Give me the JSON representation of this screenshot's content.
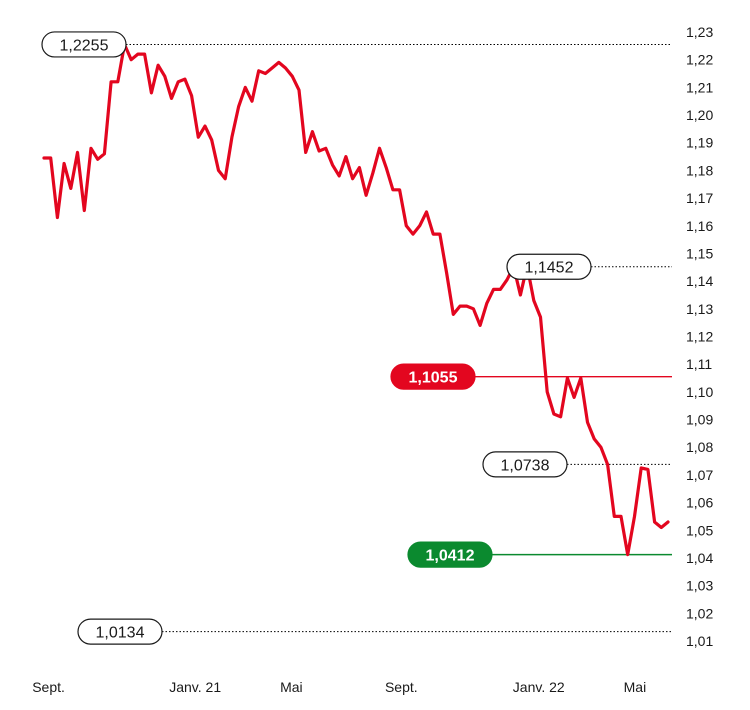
{
  "chart_data": {
    "type": "line",
    "title": "",
    "xlabel": "",
    "ylabel": "",
    "ylim": [
      1.01,
      1.23
    ],
    "y_ticks": [
      "1,23",
      "1,22",
      "1,21",
      "1,20",
      "1,19",
      "1,18",
      "1,17",
      "1,16",
      "1,15",
      "1,14",
      "1,13",
      "1,12",
      "1,11",
      "1,10",
      "1,09",
      "1,08",
      "1,07",
      "1,06",
      "1,05",
      "1,04",
      "1,03",
      "1,02",
      "1,01"
    ],
    "y_tick_values": [
      1.23,
      1.22,
      1.21,
      1.2,
      1.19,
      1.18,
      1.17,
      1.16,
      1.15,
      1.14,
      1.13,
      1.12,
      1.11,
      1.1,
      1.09,
      1.08,
      1.07,
      1.06,
      1.05,
      1.04,
      1.03,
      1.02,
      1.01
    ],
    "x_ticks": [
      {
        "label": "Sept.",
        "pos": 0.0
      },
      {
        "label": "Janv. 21",
        "pos": 16.0
      },
      {
        "label": "Mai",
        "pos": 26.5
      },
      {
        "label": "Sept.",
        "pos": 38.5
      },
      {
        "label": "Janv. 22",
        "pos": 53.5
      },
      {
        "label": "Mai",
        "pos": 64.0
      }
    ],
    "x_range": [
      -0.5,
      67.5
    ],
    "grid": false,
    "series": [
      {
        "values": [
          1.1845,
          1.1845,
          1.163,
          1.1825,
          1.1735,
          1.1865,
          1.1655,
          1.188,
          1.184,
          1.186,
          1.212,
          1.212,
          1.2255,
          1.22,
          1.222,
          1.222,
          1.208,
          1.218,
          1.214,
          1.206,
          1.212,
          1.213,
          1.207,
          1.192,
          1.196,
          1.191,
          1.18,
          1.177,
          1.192,
          1.203,
          1.21,
          1.205,
          1.216,
          1.215,
          1.217,
          1.219,
          1.217,
          1.214,
          1.209,
          1.1865,
          1.194,
          1.187,
          1.188,
          1.182,
          1.178,
          1.185,
          1.177,
          1.181,
          1.171,
          1.179,
          1.188,
          1.181,
          1.173,
          1.173,
          1.16,
          1.157,
          1.16,
          1.165,
          1.157,
          1.157,
          1.143,
          1.128,
          1.131,
          1.131,
          1.13,
          1.124,
          1.132,
          1.137,
          1.137,
          1.1405,
          1.1452,
          1.135,
          1.1455,
          1.133,
          1.127,
          1.1,
          1.092,
          1.091,
          1.105,
          1.098,
          1.105,
          1.089,
          1.083,
          1.08,
          1.0738,
          1.055,
          1.055,
          1.0412,
          1.055,
          1.0725,
          1.072,
          1.053,
          1.051,
          1.053
        ]
      }
    ],
    "reference_lines": [
      {
        "label": "1,2255",
        "value": 1.2255,
        "style": "dotted",
        "color": "#000000",
        "badge": "outline",
        "side": "left"
      },
      {
        "label": "1,1452",
        "value": 1.1452,
        "style": "dotted",
        "color": "#000000",
        "badge": "outline",
        "side": "middle"
      },
      {
        "label": "1,1055",
        "value": 1.1055,
        "style": "solid",
        "color": "#e3061f",
        "badge": "filled",
        "side": "middle"
      },
      {
        "label": "1,0738",
        "value": 1.0738,
        "style": "dotted",
        "color": "#000000",
        "badge": "outline",
        "side": "right"
      },
      {
        "label": "1,0412",
        "value": 1.0412,
        "style": "solid",
        "color": "#0b8a2f",
        "badge": "filled",
        "side": "middle"
      },
      {
        "label": "1,0134",
        "value": 1.0134,
        "style": "dotted",
        "color": "#000000",
        "badge": "outline",
        "side": "left"
      }
    ],
    "line_color": "#e3061f"
  }
}
